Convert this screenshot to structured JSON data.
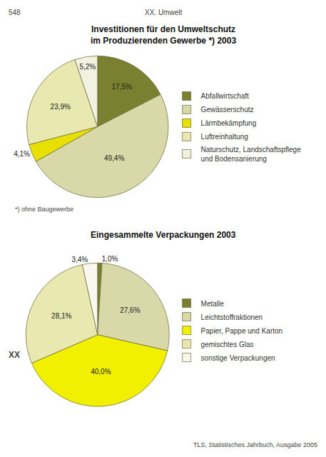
{
  "chart_data": [
    {
      "type": "pie",
      "title": "Investitionen für den Umweltschutz\nim Produzierenden Gewerbe *) 2003",
      "categories": [
        "Abfallwirtschaft",
        "Gewässerschutz",
        "Lärmbekämpfung",
        "Luftreinhaltung",
        "Naturschutz, Landschaftspflege\nund Bodensanierung"
      ],
      "values": [
        17.5,
        49.4,
        4.1,
        23.9,
        5.2
      ],
      "value_labels": [
        "17,5%",
        "49,4%",
        "4,1%",
        "23,9%",
        "5,2%"
      ],
      "colors": [
        "#7a8030",
        "#d8d8a8",
        "#e8e000",
        "#e8e8b0",
        "#f2f2e0"
      ],
      "data_labels": true,
      "legend": "right",
      "annotations": [
        "548",
        "XX. Umwelt",
        "*) ohne Baugewerbe"
      ]
    },
    {
      "type": "pie",
      "title": "Eingesammelte Verpackungen 2003",
      "categories": [
        "Metalle",
        "Leichtstoffraktionen",
        "Papier, Pappe und Karton",
        "gemischtes Glas",
        "sonstige Verpackungen"
      ],
      "values": [
        1.0,
        27.6,
        40.0,
        28.1,
        3.4
      ],
      "value_labels": [
        "1,0%",
        "27,6%",
        "40,0%",
        "28,1%",
        "3,4%"
      ],
      "colors": [
        "#7a8030",
        "#d8d8a8",
        "#f0f000",
        "#e8e8b0",
        "#f8f8f0"
      ],
      "data_labels": true,
      "legend": "right",
      "annotations": [
        "XX",
        "TLS, Statistisches Jahrbuch, Ausgabe 2005"
      ]
    }
  ]
}
